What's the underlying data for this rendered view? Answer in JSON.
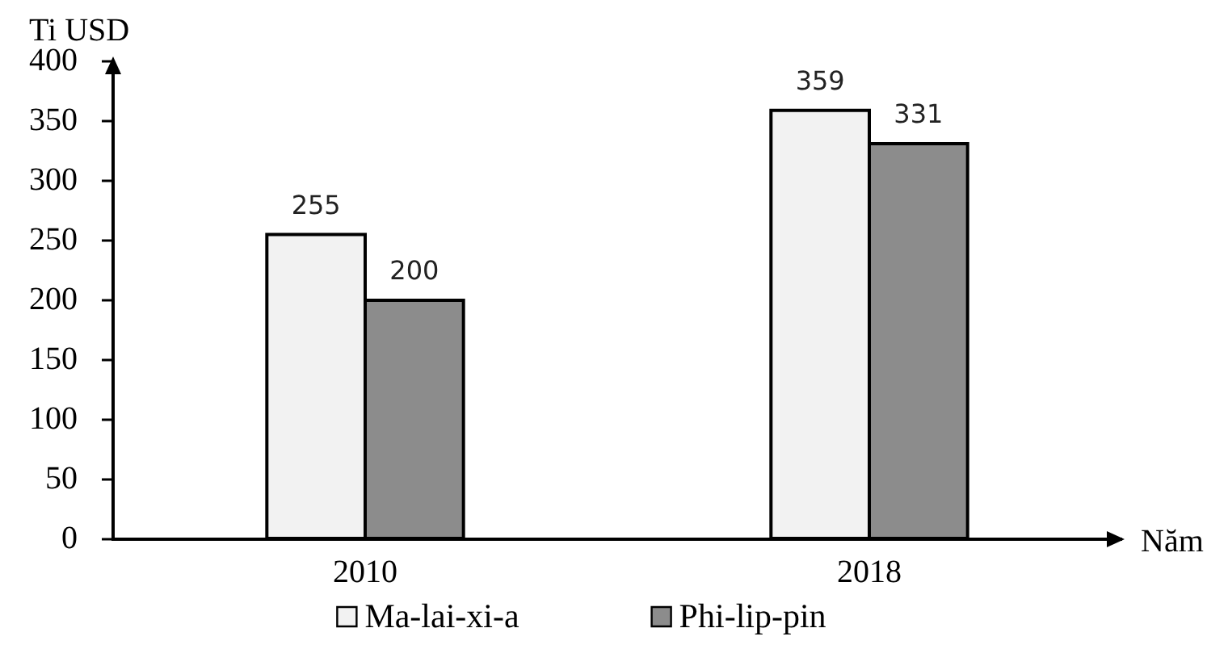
{
  "chart_data": {
    "type": "bar",
    "ylabel": "Ti USD",
    "xlabel": "Năm",
    "categories": [
      "2010",
      "2018"
    ],
    "series": [
      {
        "name": "Ma-lai-xi-a",
        "color": "#f2f2f2",
        "values": [
          255,
          359
        ]
      },
      {
        "name": "Phi-lip-pin",
        "color": "#8c8c8c",
        "values": [
          200,
          331
        ]
      }
    ],
    "ylim": [
      0,
      400
    ],
    "yticks": [
      0,
      50,
      100,
      150,
      200,
      250,
      300,
      350,
      400
    ],
    "data_labels": true,
    "legend": "bottom",
    "grid": false
  }
}
